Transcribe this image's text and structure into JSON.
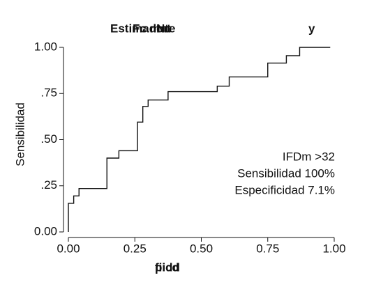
{
  "chart_data": {
    "type": "line",
    "title_parts": [
      "Estimador",
      "Fc mat",
      "Nte"
    ],
    "corner_label": "y",
    "ylabel": "Sensibilidad",
    "xlabel_parts": [
      "fiicd",
      "pidd"
    ],
    "annotations": [
      "IFDm >32",
      "Sensibilidad 100%",
      "Especificidad 7.1%"
    ],
    "color": "#111111",
    "x": [
      0,
      0,
      0.02,
      0.02,
      0.04,
      0.04,
      0.145,
      0.145,
      0.19,
      0.19,
      0.26,
      0.26,
      0.28,
      0.28,
      0.3,
      0.3,
      0.375,
      0.375,
      0.56,
      0.56,
      0.605,
      0.605,
      0.75,
      0.75,
      0.82,
      0.82,
      0.87,
      0.87,
      0.985
    ],
    "values": [
      0,
      0.155,
      0.155,
      0.195,
      0.195,
      0.235,
      0.235,
      0.4,
      0.4,
      0.44,
      0.44,
      0.595,
      0.595,
      0.68,
      0.68,
      0.715,
      0.715,
      0.76,
      0.76,
      0.79,
      0.79,
      0.84,
      0.84,
      0.915,
      0.915,
      0.955,
      0.955,
      1.0,
      1.0
    ],
    "xlim": [
      0,
      1
    ],
    "ylim": [
      0,
      1
    ],
    "xticks": [
      {
        "value": 0,
        "label": "0.00"
      },
      {
        "value": 0.25,
        "label": "0.25"
      },
      {
        "value": 0.5,
        "label": "0.50"
      },
      {
        "value": 0.75,
        "label": "0.75"
      },
      {
        "value": 1,
        "label": "1.00"
      }
    ],
    "yticks": [
      {
        "value": 0,
        "label": "0.00"
      },
      {
        "value": 0.25,
        "label": ".25"
      },
      {
        "value": 0.5,
        "label": ".50"
      },
      {
        "value": 0.75,
        "label": ".75"
      },
      {
        "value": 1,
        "label": "1.00"
      }
    ]
  }
}
